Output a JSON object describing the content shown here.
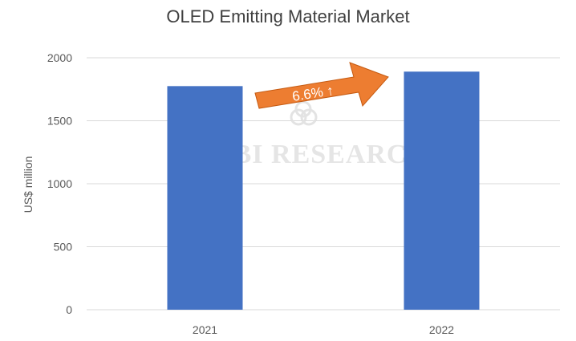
{
  "chart_data": {
    "type": "bar",
    "title": "OLED Emitting Material Market",
    "xlabel": "",
    "ylabel": "US$ million",
    "categories": [
      "2021",
      "2022"
    ],
    "values": [
      1775,
      1890
    ],
    "ylim": [
      0,
      2000
    ],
    "yticks": [
      0,
      500,
      1000,
      1500,
      2000
    ],
    "ytick_labels": [
      "0",
      "500",
      "1000",
      "1500",
      "2000"
    ],
    "grid": true,
    "legend": "none",
    "annotation": {
      "text": "6.6% ↑",
      "style": "arrow",
      "from_category": "2021",
      "to_category": "2022"
    },
    "watermark": "UBI RESEARCH"
  },
  "colors": {
    "bar": "#4472c4",
    "arrow": "#ed7d31",
    "arrow_border": "#c55a11",
    "grid": "#d9d9d9",
    "axis_text": "#595959",
    "title_text": "#404040",
    "watermark": "#dcdcdc"
  }
}
